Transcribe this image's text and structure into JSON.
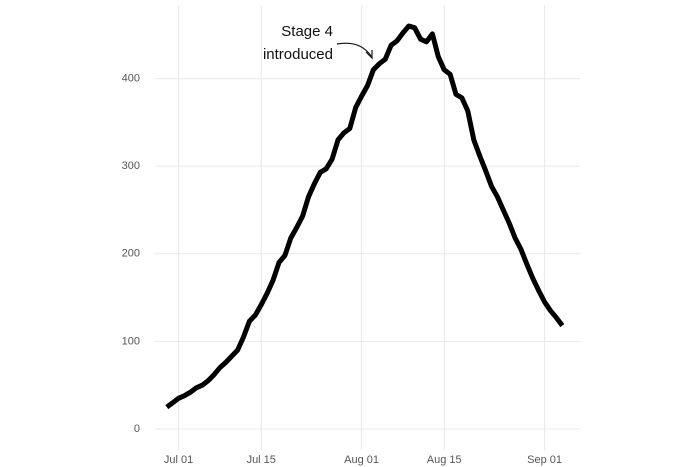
{
  "chart_data": {
    "type": "line",
    "annotation": [
      "Stage 4",
      "introduced"
    ],
    "x": [
      "06-29",
      "06-30",
      "07-01",
      "07-02",
      "07-03",
      "07-04",
      "07-05",
      "07-06",
      "07-07",
      "07-08",
      "07-09",
      "07-10",
      "07-11",
      "07-12",
      "07-13",
      "07-14",
      "07-15",
      "07-16",
      "07-17",
      "07-18",
      "07-19",
      "07-20",
      "07-21",
      "07-22",
      "07-23",
      "07-24",
      "07-25",
      "07-26",
      "07-27",
      "07-28",
      "07-29",
      "07-30",
      "07-31",
      "08-01",
      "08-02",
      "08-03",
      "08-04",
      "08-05",
      "08-06",
      "08-07",
      "08-08",
      "08-09",
      "08-10",
      "08-11",
      "08-12",
      "08-13",
      "08-14",
      "08-15",
      "08-16",
      "08-17",
      "08-18",
      "08-19",
      "08-20",
      "08-21",
      "08-22",
      "08-23",
      "08-24",
      "08-25",
      "08-26",
      "08-27",
      "08-28",
      "08-29",
      "08-30",
      "08-31",
      "09-01",
      "09-02",
      "09-03",
      "09-04"
    ],
    "series": [
      {
        "color": "#000000",
        "values": [
          25,
          30,
          35,
          38,
          42,
          47,
          50,
          55,
          62,
          70,
          76,
          83,
          90,
          105,
          123,
          130,
          142,
          155,
          170,
          190,
          198,
          218,
          230,
          243,
          265,
          280,
          293,
          297,
          308,
          330,
          338,
          343,
          367,
          380,
          392,
          410,
          417,
          422,
          438,
          443,
          452,
          460,
          458,
          445,
          442,
          451,
          425,
          410,
          405,
          382,
          378,
          363,
          330,
          312,
          295,
          277,
          265,
          250,
          235,
          218,
          205,
          188,
          172,
          158,
          145,
          135,
          127,
          118
        ]
      }
    ],
    "xlim": [
      "06-27",
      "09-07"
    ],
    "xticks": [
      {
        "value": "07-01",
        "label": "Jul 01"
      },
      {
        "value": "07-15",
        "label": "Jul 15"
      },
      {
        "value": "08-01",
        "label": "Aug 01"
      },
      {
        "value": "08-15",
        "label": "Aug 15"
      },
      {
        "value": "09-01",
        "label": "Sep 01"
      }
    ],
    "ylim": [
      -24,
      484
    ],
    "yticks": [
      0,
      100,
      200,
      300,
      400
    ],
    "grid": true
  }
}
